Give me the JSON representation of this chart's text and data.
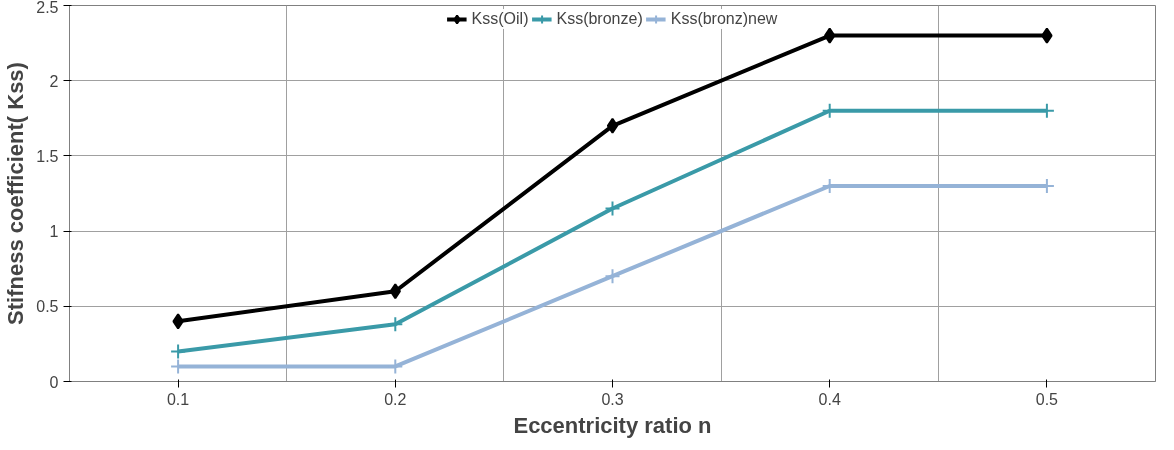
{
  "chart_data": {
    "type": "line",
    "xlabel": "Eccentricity ratio n",
    "ylabel": "Stifness coefficient( Kss)",
    "categories": [
      "0.1",
      "0.2",
      "0.3",
      "0.4",
      "0.5"
    ],
    "ylim": [
      0,
      2.5
    ],
    "yticks": [
      0,
      0.5,
      1,
      1.5,
      2,
      2.5
    ],
    "grid": true,
    "legend": "top",
    "line_style": "solid",
    "series": [
      {
        "name": "Kss(Oil)",
        "color": "#000000",
        "marker": "diamond",
        "values": [
          0.4,
          0.6,
          1.7,
          2.3,
          2.3
        ]
      },
      {
        "name": "Kss(bronze)",
        "color": "#3a9aa8",
        "marker": "cross",
        "values": [
          0.2,
          0.38,
          1.15,
          1.8,
          1.8
        ]
      },
      {
        "name": "Kss(bronz)new",
        "color": "#95b3d7",
        "marker": "cross",
        "values": [
          0.1,
          0.1,
          0.7,
          1.3,
          1.3
        ]
      }
    ]
  }
}
